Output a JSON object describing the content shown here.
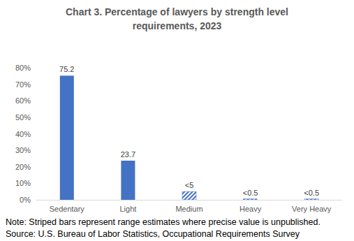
{
  "chart_data": {
    "type": "bar",
    "title": "Chart 3. Percentage of lawyers by strength level requirements, 2023",
    "categories": [
      "Sedentary",
      "Light",
      "Medium",
      "Heavy",
      "Very Heavy"
    ],
    "values": [
      75.2,
      23.7,
      5,
      0.5,
      0.5
    ],
    "value_labels": [
      "75.2",
      "23.7",
      "<5",
      "<0.5",
      "<0.5"
    ],
    "color": "#4472c4",
    "ylim": [
      0,
      80
    ],
    "yticks": [
      {
        "value": 0,
        "label": "0%"
      },
      {
        "value": 10,
        "label": "10%"
      },
      {
        "value": 20,
        "label": "20%"
      },
      {
        "value": 30,
        "label": "30%"
      },
      {
        "value": 40,
        "label": "40%"
      },
      {
        "value": 50,
        "label": "50%"
      },
      {
        "value": 60,
        "label": "60%"
      },
      {
        "value": 70,
        "label": "70%"
      },
      {
        "value": 80,
        "label": "80%"
      }
    ],
    "grid": false,
    "data_labels": true,
    "note": "Note: Striped bars represent range estimates where precise value is unpublished.",
    "source": "Source: U.S. Bureau of Labor Statistics, Occupational Requirements Survey"
  }
}
